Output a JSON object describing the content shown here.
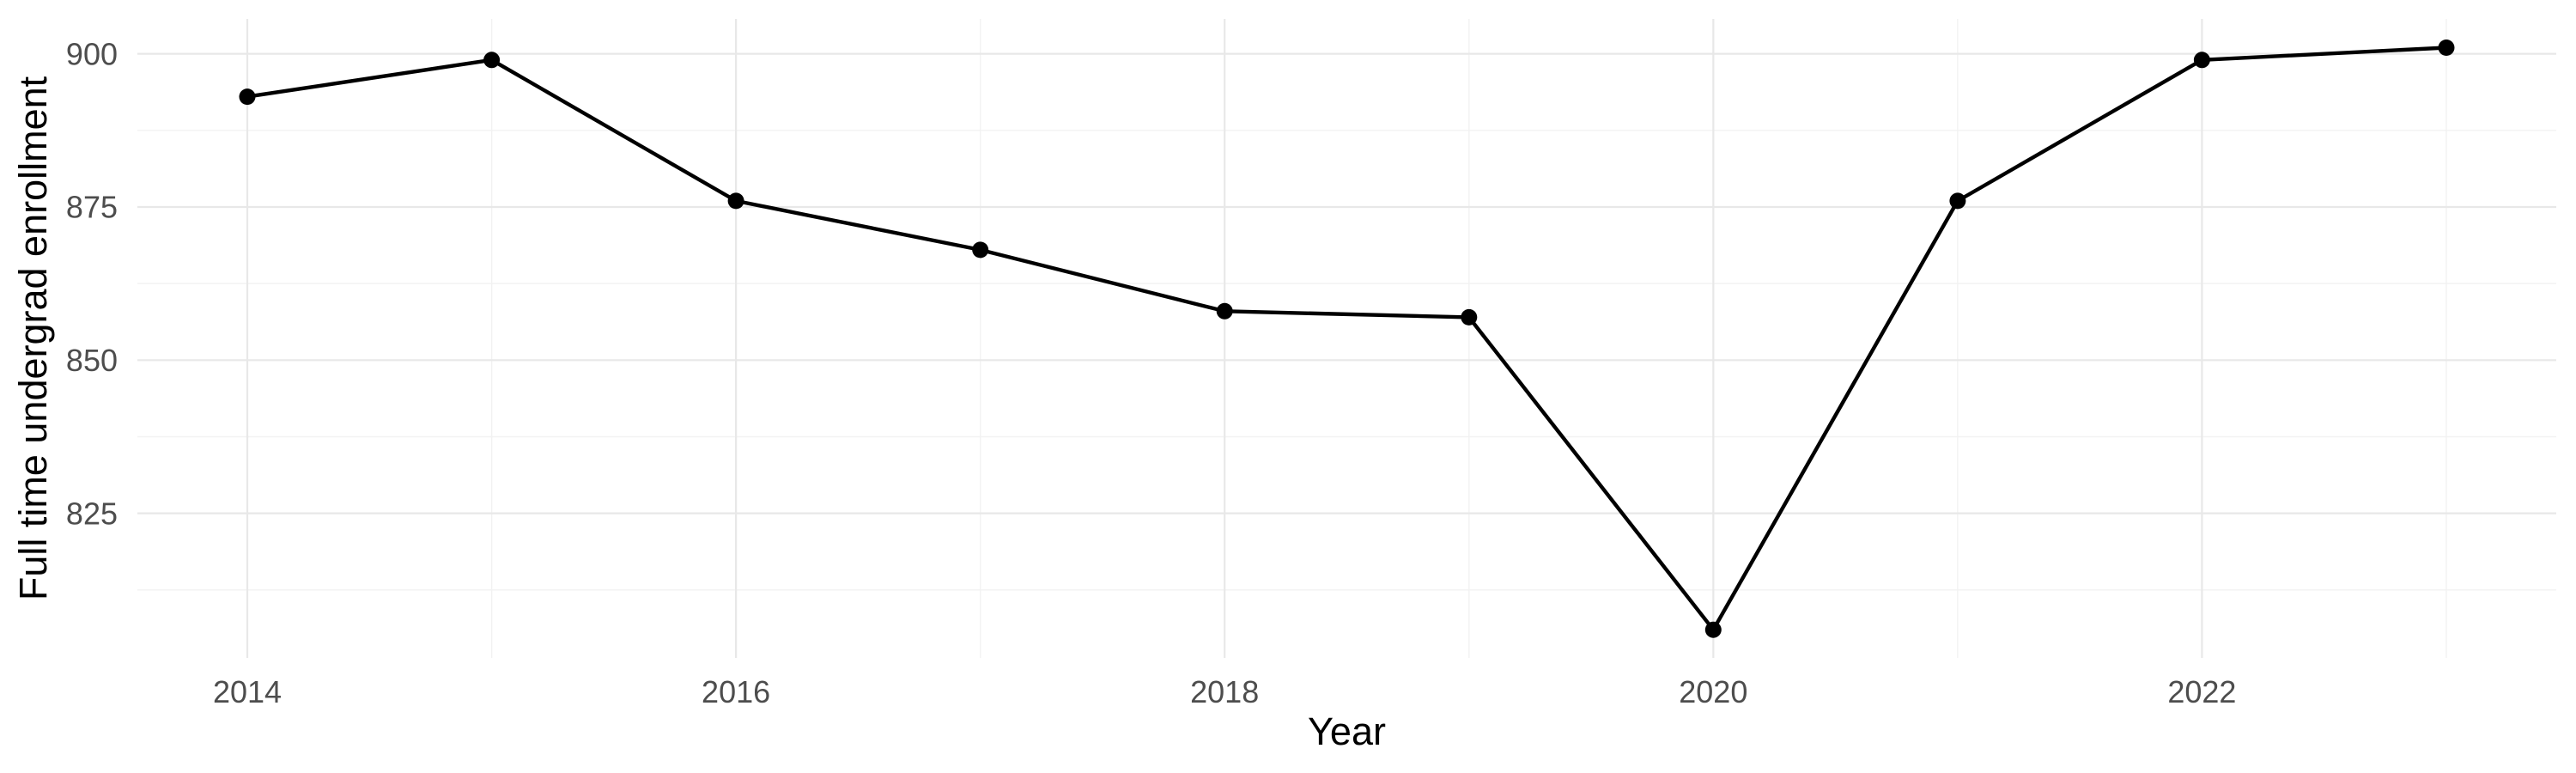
{
  "chart_data": {
    "type": "line",
    "title": "",
    "xlabel": "Year",
    "ylabel": "Full time undergrad enrollment",
    "x": [
      2014,
      2015,
      2016,
      2017,
      2018,
      2019,
      2020,
      2021,
      2022,
      2023
    ],
    "series": [
      {
        "name": "Full time undergrad enrollment",
        "values": [
          893,
          899,
          876,
          868,
          858,
          857,
          806,
          876,
          899,
          901
        ]
      }
    ],
    "x_ticks": [
      2014,
      2016,
      2018,
      2020,
      2022
    ],
    "x_minor_ticks": [
      2015,
      2017,
      2019,
      2021,
      2023
    ],
    "y_ticks": [
      825,
      850,
      875,
      900
    ],
    "y_minor_ticks": [
      812.5,
      837.5,
      862.5,
      887.5
    ],
    "x_range": [
      2013.55,
      2023.45
    ],
    "y_range": [
      801.4,
      905.7
    ],
    "grid": "major and minor, no axis lines, no tick marks (ggplot theme_minimal style)",
    "legend_position": "none",
    "colors": {
      "background": "#ffffff",
      "line": "#000000",
      "point": "#000000",
      "grid_major": "#e8e8e8",
      "grid_minor": "#f2f2f2",
      "tick_label": "#4d4d4d",
      "axis_title": "#000000"
    }
  }
}
